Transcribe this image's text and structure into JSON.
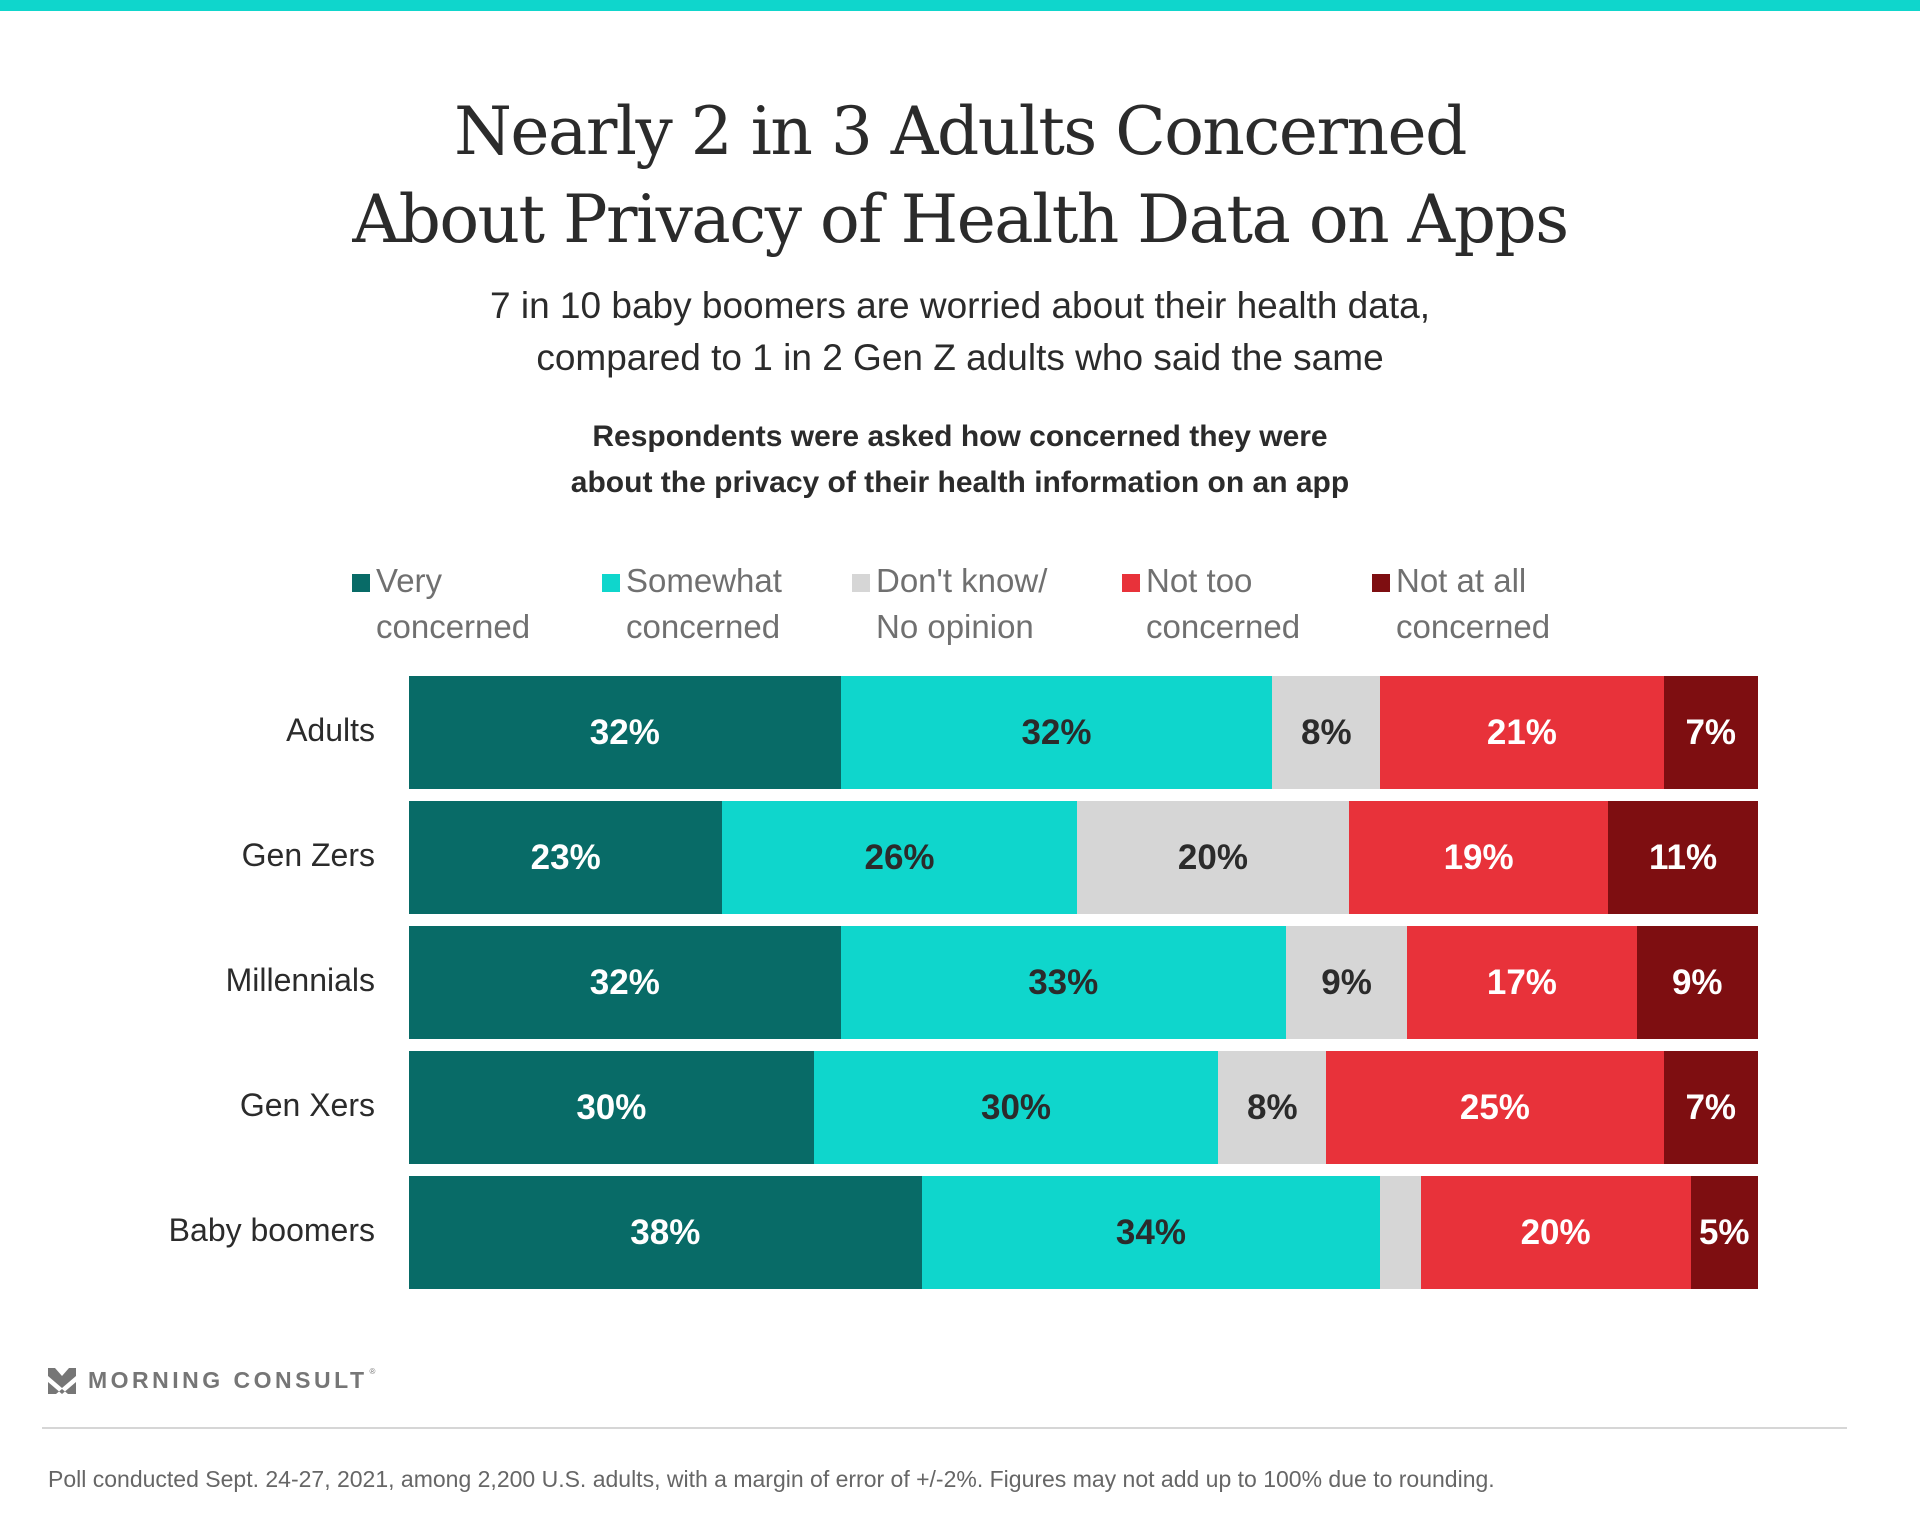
{
  "header": {
    "title_line1": "Nearly 2 in 3 Adults Concerned",
    "title_line2": "About Privacy of Health Data on Apps",
    "subtitle_line1": "7 in 10 baby boomers are worried about their health data,",
    "subtitle_line2": "compared to 1 in 2 Gen Z adults who said the same",
    "question_line1": "Respondents were asked how concerned they were",
    "question_line2": "about the privacy of their health information on an app"
  },
  "colors": {
    "top_bar": "#0fd6cc",
    "very": "#086b67",
    "somewhat": "#0fd6cc",
    "dontknow": "#d6d6d6",
    "nottoo": "#e8323a",
    "notatall": "#7e0e11"
  },
  "chart_data": {
    "type": "bar",
    "orientation": "horizontal",
    "stacked": true,
    "title": "Nearly 2 in 3 Adults Concerned About Privacy of Health Data on Apps",
    "subtitle": "7 in 10 baby boomers are worried about their health data, compared to 1 in 2 Gen Z adults who said the same",
    "xlabel": "",
    "ylabel": "",
    "unit": "%",
    "legend_position": "top",
    "grid": false,
    "categories": [
      "Adults",
      "Gen Zers",
      "Millennials",
      "Gen Xers",
      "Baby boomers"
    ],
    "series": [
      {
        "name": "Very concerned",
        "legend_line1": "Very",
        "legend_line2": "concerned",
        "color": "#086b67",
        "label_color": "#ffffff",
        "values": [
          32,
          23,
          32,
          30,
          38
        ],
        "labels": [
          "32%",
          "23%",
          "32%",
          "30%",
          "38%"
        ]
      },
      {
        "name": "Somewhat concerned",
        "legend_line1": "Somewhat",
        "legend_line2": "concerned",
        "color": "#0fd6cc",
        "label_color": "#2b2b2b",
        "values": [
          32,
          26,
          33,
          30,
          34
        ],
        "labels": [
          "32%",
          "26%",
          "33%",
          "30%",
          "34%"
        ]
      },
      {
        "name": "Don't know/ No opinion",
        "legend_line1": "Don't know/",
        "legend_line2": "No opinion",
        "color": "#d6d6d6",
        "label_color": "#2b2b2b",
        "values": [
          8,
          20,
          9,
          8,
          3
        ],
        "labels": [
          "8%",
          "20%",
          "9%",
          "8%",
          ""
        ]
      },
      {
        "name": "Not too concerned",
        "legend_line1": "Not too",
        "legend_line2": "concerned",
        "color": "#e8323a",
        "label_color": "#ffffff",
        "values": [
          21,
          19,
          17,
          25,
          20
        ],
        "labels": [
          "21%",
          "19%",
          "17%",
          "25%",
          "20%"
        ]
      },
      {
        "name": "Not at all concerned",
        "legend_line1": "Not at all",
        "legend_line2": "concerned",
        "color": "#7e0e11",
        "label_color": "#ffffff",
        "values": [
          7,
          11,
          9,
          7,
          5
        ],
        "labels": [
          "7%",
          "11%",
          "9%",
          "7%",
          "5%"
        ]
      }
    ]
  },
  "footer": {
    "brand": "MORNING CONSULT",
    "brand_reg": "®",
    "note": "Poll conducted Sept. 24-27, 2021, among 2,200 U.S. adults, with a margin of error of +/-2%. Figures may not add up to 100% due to rounding."
  }
}
